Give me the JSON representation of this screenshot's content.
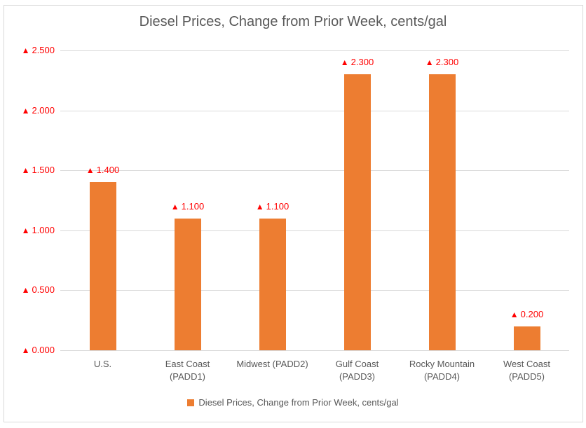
{
  "chart": {
    "title": "Diesel Prices, Change from Prior Week, cents/gal",
    "legend": "Diesel Prices, Change from Prior Week, cents/gal"
  },
  "chart_data": {
    "type": "bar",
    "title": "Diesel Prices, Change from Prior Week, cents/gal",
    "categories": [
      "U.S.",
      "East Coast (PADD1)",
      "Midwest (PADD2)",
      "Gulf Coast (PADD3)",
      "Rocky Mountain (PADD4)",
      "West Coast (PADD5)"
    ],
    "category_label_lines": [
      [
        "U.S."
      ],
      [
        "East Coast",
        "(PADD1)"
      ],
      [
        "Midwest (PADD2)"
      ],
      [
        "Gulf Coast",
        "(PADD3)"
      ],
      [
        "Rocky Mountain",
        "(PADD4)"
      ],
      [
        "West Coast",
        "(PADD5)"
      ]
    ],
    "series": [
      {
        "name": "Diesel Prices, Change from Prior Week, cents/gal",
        "values": [
          1.4,
          1.1,
          1.1,
          2.3,
          2.3,
          0.2
        ]
      }
    ],
    "data_labels": [
      "1.400",
      "1.100",
      "1.100",
      "2.300",
      "2.300",
      "0.200"
    ],
    "data_label_marker": "▲",
    "ytick_values": [
      0,
      0.5,
      1,
      1.5,
      2,
      2.5
    ],
    "ytick_labels": [
      "0.000",
      "0.500",
      "1.000",
      "1.500",
      "2.000",
      "2.500"
    ],
    "ylim": [
      0,
      2.5
    ],
    "xlabel": "",
    "ylabel": "",
    "grid": true,
    "legend_position": "bottom",
    "colors": {
      "bar": "#ED7D31",
      "label_red": "#FF0000",
      "axis_text": "#595959",
      "gridline": "#D9D9D9",
      "frame_border": "#D9D9D9",
      "background": "#FFFFFF"
    }
  }
}
